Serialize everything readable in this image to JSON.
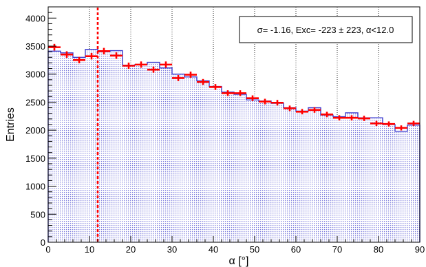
{
  "chart_data": {
    "type": "bar",
    "xlabel": "α [°]",
    "ylabel": "Entries",
    "xlim": [
      0,
      90
    ],
    "ylim": [
      0,
      4200
    ],
    "x_ticks": [
      0,
      10,
      20,
      30,
      40,
      50,
      60,
      70,
      80,
      90
    ],
    "y_ticks": [
      0,
      500,
      1000,
      1500,
      2000,
      2500,
      3000,
      3500,
      4000
    ],
    "grid": "vertical-dotted",
    "bin_width": 3,
    "bin_centers": [
      1.5,
      4.5,
      7.5,
      10.5,
      13.5,
      16.5,
      19.5,
      22.5,
      25.5,
      28.5,
      31.5,
      34.5,
      37.5,
      40.5,
      43.5,
      46.5,
      49.5,
      52.5,
      55.5,
      58.5,
      61.5,
      64.5,
      67.5,
      70.5,
      73.5,
      76.5,
      79.5,
      82.5,
      85.5,
      88.5
    ],
    "series": [
      {
        "style": "histogram",
        "color": "#4040d0",
        "values": [
          3410,
          3380,
          3300,
          3440,
          3400,
          3420,
          3160,
          3170,
          3210,
          3110,
          3000,
          2950,
          2880,
          2780,
          2680,
          2640,
          2540,
          2520,
          2480,
          2400,
          2340,
          2400,
          2270,
          2240,
          2310,
          2220,
          2220,
          2100,
          1980,
          2090
        ]
      },
      {
        "style": "points-with-xerr",
        "color": "#ff0000",
        "values": [
          3480,
          3350,
          3250,
          3320,
          3410,
          3330,
          3150,
          3170,
          3080,
          3170,
          2930,
          2990,
          2860,
          2770,
          2660,
          2660,
          2570,
          2510,
          2490,
          2390,
          2330,
          2360,
          2280,
          2220,
          2220,
          2210,
          2120,
          2110,
          2040,
          2120
        ],
        "yerr": [
          59,
          58,
          57,
          58,
          58,
          58,
          56,
          56,
          55,
          56,
          54,
          55,
          53,
          53,
          52,
          52,
          51,
          50,
          50,
          49,
          48,
          49,
          48,
          47,
          47,
          47,
          46,
          46,
          45,
          46
        ]
      }
    ],
    "cut_line": {
      "x": 12.0,
      "color": "#ff0000",
      "style": "dashed"
    },
    "annotation": {
      "text": "σ= -1.16, Exc= -223 ± 223, α<12.0",
      "placement": "top-right"
    }
  }
}
